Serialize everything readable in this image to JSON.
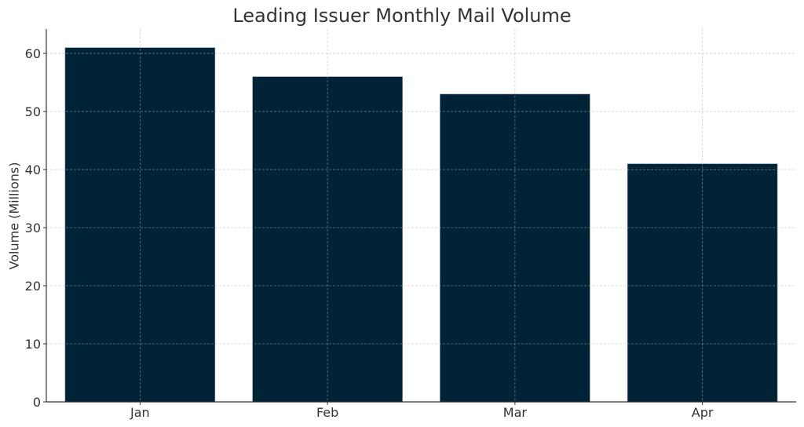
{
  "chart_data": {
    "type": "bar",
    "title": "Leading Issuer Monthly Mail Volume",
    "xlabel": "",
    "ylabel": "Volume (Millions)",
    "categories": [
      "Jan",
      "Feb",
      "Mar",
      "Apr"
    ],
    "values": [
      61,
      56,
      53,
      41
    ],
    "ylim": [
      0,
      64.2
    ],
    "yticks": [
      0,
      10,
      20,
      30,
      40,
      50,
      60
    ],
    "grid": true,
    "bar_color": "#002337",
    "legend": null
  }
}
